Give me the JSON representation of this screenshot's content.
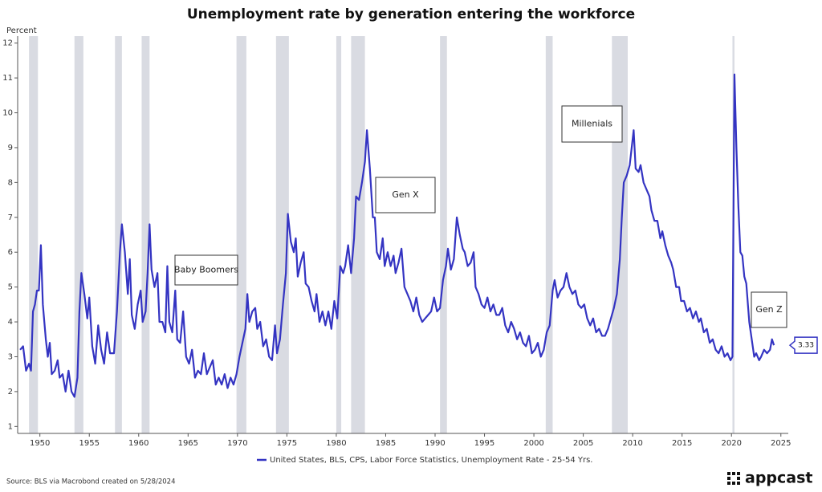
{
  "chart_data": {
    "type": "line",
    "title": "Unemployment rate by generation entering the workforce",
    "y_label": "Percent",
    "source": "Source: BLS via Macrobond created on 5/28/2024",
    "logo": "appcast",
    "xlim": [
      1947.75,
      2025.75
    ],
    "ylim": [
      0.8,
      12.2
    ],
    "xticks": [
      1950,
      1955,
      1960,
      1965,
      1970,
      1975,
      1980,
      1985,
      1990,
      1995,
      2000,
      2005,
      2010,
      2015,
      2020,
      2025
    ],
    "yticks": [
      1,
      2,
      3,
      4,
      5,
      6,
      7,
      8,
      9,
      10,
      11,
      12
    ],
    "recessions": [
      [
        1948.9,
        1949.8
      ],
      [
        1953.5,
        1954.4
      ],
      [
        1957.6,
        1958.3
      ],
      [
        1960.3,
        1961.1
      ],
      [
        1969.9,
        1970.9
      ],
      [
        1973.9,
        1975.2
      ],
      [
        1980.0,
        1980.5
      ],
      [
        1981.5,
        1982.9
      ],
      [
        1990.5,
        1991.2
      ],
      [
        2001.2,
        2001.9
      ],
      [
        2007.9,
        2009.5
      ],
      [
        2020.1,
        2020.3
      ]
    ],
    "recession_color": "#d9dbe2",
    "annotations": [
      "Baby Boomers",
      "Gen X",
      "Millenials",
      "Gen Z"
    ],
    "x": [
      1948.0,
      1948.3,
      1948.6,
      1948.9,
      1949.1,
      1949.3,
      1949.5,
      1949.7,
      1949.9,
      1950.1,
      1950.3,
      1950.6,
      1950.8,
      1951.0,
      1951.2,
      1951.5,
      1951.8,
      1952.0,
      1952.3,
      1952.6,
      1952.9,
      1953.2,
      1953.5,
      1953.8,
      1954.0,
      1954.2,
      1954.5,
      1954.8,
      1955.0,
      1955.3,
      1955.6,
      1955.9,
      1956.2,
      1956.5,
      1956.8,
      1957.1,
      1957.5,
      1957.8,
      1958.1,
      1958.3,
      1958.6,
      1958.9,
      1959.1,
      1959.3,
      1959.6,
      1959.9,
      1960.2,
      1960.4,
      1960.7,
      1960.9,
      1961.1,
      1961.3,
      1961.6,
      1961.9,
      1962.1,
      1962.4,
      1962.7,
      1962.9,
      1963.1,
      1963.4,
      1963.7,
      1963.9,
      1964.2,
      1964.5,
      1964.8,
      1965.1,
      1965.4,
      1965.7,
      1966.0,
      1966.3,
      1966.6,
      1966.9,
      1967.2,
      1967.5,
      1967.8,
      1968.1,
      1968.4,
      1968.7,
      1969.0,
      1969.3,
      1969.6,
      1969.9,
      1970.2,
      1970.5,
      1970.8,
      1971.0,
      1971.2,
      1971.5,
      1971.8,
      1972.0,
      1972.3,
      1972.6,
      1972.9,
      1973.2,
      1973.5,
      1973.8,
      1974.0,
      1974.3,
      1974.6,
      1974.9,
      1975.1,
      1975.4,
      1975.7,
      1975.9,
      1976.1,
      1976.4,
      1976.7,
      1976.9,
      1977.2,
      1977.5,
      1977.8,
      1978.0,
      1978.3,
      1978.6,
      1978.9,
      1979.2,
      1979.5,
      1979.8,
      1980.1,
      1980.4,
      1980.7,
      1980.9,
      1981.2,
      1981.5,
      1981.8,
      1982.0,
      1982.3,
      1982.6,
      1982.9,
      1983.1,
      1983.4,
      1983.7,
      1983.9,
      1984.1,
      1984.4,
      1984.7,
      1984.9,
      1985.2,
      1985.5,
      1985.8,
      1986.0,
      1986.3,
      1986.6,
      1986.9,
      1987.2,
      1987.5,
      1987.8,
      1988.1,
      1988.4,
      1988.7,
      1989.0,
      1989.3,
      1989.6,
      1989.9,
      1990.2,
      1990.5,
      1990.8,
      1991.1,
      1991.3,
      1991.6,
      1991.9,
      1992.2,
      1992.5,
      1992.8,
      1993.0,
      1993.3,
      1993.6,
      1993.9,
      1994.1,
      1994.4,
      1994.7,
      1995.0,
      1995.3,
      1995.6,
      1995.9,
      1996.2,
      1996.5,
      1996.8,
      1997.1,
      1997.4,
      1997.7,
      1998.0,
      1998.3,
      1998.6,
      1998.9,
      1999.2,
      1999.5,
      1999.8,
      2000.1,
      2000.4,
      2000.7,
      2001.0,
      2001.3,
      2001.6,
      2001.9,
      2002.1,
      2002.4,
      2002.7,
      2003.0,
      2003.3,
      2003.6,
      2003.9,
      2004.2,
      2004.5,
      2004.8,
      2005.1,
      2005.4,
      2005.7,
      2006.0,
      2006.3,
      2006.6,
      2006.9,
      2007.2,
      2007.5,
      2007.8,
      2008.1,
      2008.4,
      2008.7,
      2008.9,
      2009.1,
      2009.4,
      2009.7,
      2009.9,
      2010.1,
      2010.3,
      2010.6,
      2010.8,
      2011.1,
      2011.4,
      2011.7,
      2011.9,
      2012.2,
      2012.5,
      2012.8,
      2013.0,
      2013.3,
      2013.6,
      2013.9,
      2014.1,
      2014.4,
      2014.7,
      2014.9,
      2015.2,
      2015.5,
      2015.8,
      2016.1,
      2016.4,
      2016.7,
      2016.9,
      2017.2,
      2017.5,
      2017.8,
      2018.1,
      2018.4,
      2018.7,
      2019.0,
      2019.3,
      2019.6,
      2019.9,
      2020.1,
      2020.3,
      2020.5,
      2020.7,
      2020.9,
      2021.1,
      2021.3,
      2021.5,
      2021.8,
      2022.0,
      2022.3,
      2022.5,
      2022.8,
      2023.0,
      2023.3,
      2023.6,
      2023.9,
      2024.1,
      2024.3
    ],
    "series": [
      {
        "name": "United States, BLS, CPS, Labor Force Statistics, Unemployment Rate - 25-54 Yrs.",
        "color": "#3434c2",
        "values": [
          3.2,
          3.3,
          2.6,
          2.8,
          2.6,
          4.3,
          4.5,
          4.9,
          4.9,
          6.2,
          4.5,
          3.5,
          3.0,
          3.4,
          2.5,
          2.6,
          2.9,
          2.4,
          2.5,
          2.0,
          2.6,
          2.0,
          1.85,
          2.4,
          4.3,
          5.4,
          4.8,
          4.1,
          4.7,
          3.3,
          2.8,
          3.9,
          3.2,
          2.8,
          3.7,
          3.1,
          3.1,
          4.3,
          6.0,
          6.8,
          6.0,
          4.8,
          5.8,
          4.2,
          3.8,
          4.5,
          4.9,
          4.0,
          4.3,
          5.4,
          6.8,
          5.5,
          5.0,
          5.4,
          4.0,
          4.0,
          3.7,
          5.6,
          4.0,
          3.7,
          4.9,
          3.5,
          3.4,
          4.3,
          3.0,
          2.8,
          3.2,
          2.4,
          2.6,
          2.5,
          3.1,
          2.5,
          2.7,
          2.9,
          2.2,
          2.4,
          2.2,
          2.5,
          2.1,
          2.4,
          2.2,
          2.5,
          3.0,
          3.4,
          3.8,
          4.8,
          4.0,
          4.3,
          4.4,
          3.8,
          4.0,
          3.3,
          3.5,
          3.0,
          2.9,
          3.9,
          3.1,
          3.5,
          4.5,
          5.4,
          7.1,
          6.3,
          6.0,
          6.4,
          5.3,
          5.7,
          6.0,
          5.1,
          5.0,
          4.6,
          4.3,
          4.8,
          4.0,
          4.3,
          3.9,
          4.3,
          3.8,
          4.6,
          4.1,
          5.6,
          5.4,
          5.6,
          6.2,
          5.4,
          6.4,
          7.6,
          7.5,
          8.0,
          8.6,
          9.5,
          8.4,
          7.0,
          7.0,
          6.0,
          5.8,
          6.4,
          5.6,
          6.0,
          5.6,
          5.9,
          5.4,
          5.7,
          6.1,
          5.0,
          4.8,
          4.6,
          4.3,
          4.7,
          4.2,
          4.0,
          4.1,
          4.2,
          4.3,
          4.7,
          4.3,
          4.4,
          5.2,
          5.6,
          6.1,
          5.5,
          5.8,
          7.0,
          6.5,
          6.1,
          6.0,
          5.6,
          5.7,
          6.0,
          5.0,
          4.8,
          4.5,
          4.4,
          4.7,
          4.3,
          4.5,
          4.2,
          4.2,
          4.4,
          3.9,
          3.7,
          4.0,
          3.8,
          3.5,
          3.7,
          3.4,
          3.3,
          3.6,
          3.1,
          3.2,
          3.4,
          3.0,
          3.2,
          3.7,
          3.9,
          4.9,
          5.2,
          4.7,
          4.9,
          5.0,
          5.4,
          5.0,
          4.8,
          4.9,
          4.5,
          4.4,
          4.5,
          4.1,
          3.9,
          4.1,
          3.7,
          3.8,
          3.6,
          3.6,
          3.8,
          4.1,
          4.4,
          4.8,
          5.8,
          7.0,
          8.0,
          8.2,
          8.5,
          9.0,
          9.5,
          8.4,
          8.3,
          8.5,
          8.0,
          7.8,
          7.6,
          7.2,
          6.9,
          6.9,
          6.4,
          6.6,
          6.2,
          5.9,
          5.7,
          5.5,
          5.0,
          5.0,
          4.6,
          4.6,
          4.3,
          4.4,
          4.1,
          4.3,
          4.0,
          4.1,
          3.7,
          3.8,
          3.4,
          3.5,
          3.2,
          3.1,
          3.3,
          3.0,
          3.1,
          2.9,
          3.0,
          11.1,
          9.0,
          7.3,
          6.0,
          5.9,
          5.3,
          5.1,
          4.0,
          3.6,
          3.0,
          3.1,
          2.9,
          3.0,
          3.2,
          3.1,
          3.2,
          3.5,
          3.33
        ]
      }
    ]
  }
}
